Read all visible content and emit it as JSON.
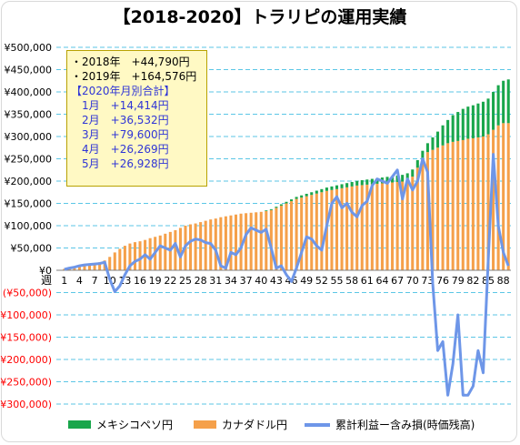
{
  "title": "【2018-2020】トラリピの運用実績",
  "colors": {
    "green": "#19a64b",
    "orange": "#f5a04a",
    "line": "#6e96e8",
    "neg": "#ff0000",
    "grid": "#5bc6e6"
  },
  "chart_data": {
    "type": "bar",
    "subtype": "stacked bar with line overlay",
    "title": "【2018-2020】トラリピの運用実績",
    "x_axis_label": "週",
    "x_tick_labels": [
      "1",
      "4",
      "7",
      "10",
      "13",
      "16",
      "19",
      "22",
      "25",
      "28",
      "31",
      "34",
      "37",
      "40",
      "43",
      "46",
      "49",
      "52",
      "55",
      "58",
      "61",
      "64",
      "67",
      "70",
      "73",
      "76",
      "79",
      "82",
      "85",
      "88"
    ],
    "y_tick_labels": [
      "¥500,000",
      "¥450,000",
      "¥400,000",
      "¥350,000",
      "¥300,000",
      "¥250,000",
      "¥200,000",
      "¥150,000",
      "¥100,000",
      "¥50,000",
      "¥0",
      "(¥50,000)",
      "(¥100,000)",
      "(¥150,000)",
      "(¥200,000)",
      "(¥250,000)",
      "(¥300,000)"
    ],
    "ylim": [
      -300000,
      500000
    ],
    "grid": true,
    "legend_position": "bottom",
    "series_names": [
      "メキシコペソ円",
      "カナダドル円",
      "累計利益ー含み損(時価残高)"
    ],
    "x": [
      1,
      2,
      3,
      4,
      5,
      6,
      7,
      8,
      9,
      10,
      11,
      12,
      13,
      14,
      15,
      16,
      17,
      18,
      19,
      20,
      21,
      22,
      23,
      24,
      25,
      26,
      27,
      28,
      29,
      30,
      31,
      32,
      33,
      34,
      35,
      36,
      37,
      38,
      39,
      40,
      41,
      42,
      43,
      44,
      45,
      46,
      47,
      48,
      49,
      50,
      51,
      52,
      53,
      54,
      55,
      56,
      57,
      58,
      59,
      60,
      61,
      62,
      63,
      64,
      65,
      66,
      67,
      68,
      69,
      70,
      71,
      72,
      73,
      74,
      75,
      76,
      77,
      78,
      79,
      80,
      81,
      82,
      83,
      84,
      85,
      86,
      87,
      88,
      89
    ],
    "series": [
      {
        "name": "カナダドル円",
        "values": [
          3000,
          5000,
          7000,
          10000,
          12000,
          14000,
          16000,
          18000,
          22000,
          30000,
          40000,
          48000,
          55000,
          60000,
          63000,
          65000,
          68000,
          72000,
          75000,
          78000,
          82000,
          86000,
          90000,
          95000,
          100000,
          103000,
          105000,
          108000,
          111000,
          114000,
          116000,
          119000,
          121000,
          123000,
          125000,
          127000,
          128000,
          129000,
          130000,
          131000,
          133000,
          135000,
          140000,
          145000,
          150000,
          155000,
          160000,
          163000,
          166000,
          169000,
          172000,
          175000,
          178000,
          180000,
          182000,
          184000,
          186000,
          188000,
          190000,
          191000,
          192000,
          193000,
          194000,
          195000,
          196000,
          197000,
          198000,
          199000,
          202000,
          210000,
          230000,
          250000,
          265000,
          270000,
          275000,
          280000,
          285000,
          288000,
          290000,
          292000,
          295000,
          296000,
          298000,
          300000,
          305000,
          315000,
          325000,
          330000,
          330000
        ]
      },
      {
        "name": "メキシコペソ円",
        "values": [
          0,
          0,
          0,
          0,
          0,
          0,
          0,
          0,
          0,
          0,
          0,
          0,
          0,
          0,
          0,
          0,
          0,
          0,
          0,
          0,
          0,
          0,
          0,
          0,
          0,
          0,
          0,
          0,
          0,
          0,
          0,
          0,
          0,
          0,
          0,
          0,
          0,
          0,
          0,
          0,
          1500,
          2000,
          2500,
          3000,
          3500,
          4000,
          4500,
          5000,
          5500,
          6000,
          6500,
          7000,
          7500,
          8000,
          8500,
          9000,
          9500,
          10000,
          10500,
          11000,
          11500,
          12000,
          12500,
          13000,
          13500,
          14000,
          14500,
          15000,
          15500,
          16000,
          17000,
          18000,
          20000,
          28000,
          36000,
          45000,
          52000,
          60000,
          65000,
          70000,
          72000,
          74000,
          76000,
          78000,
          80000,
          85000,
          90000,
          95000,
          98000
        ]
      },
      {
        "name": "累計利益ー含み損(時価残高)",
        "values": [
          2000,
          5000,
          7000,
          10000,
          12000,
          13000,
          14000,
          15000,
          18000,
          -20000,
          -48000,
          -35000,
          -10000,
          10000,
          20000,
          25000,
          35000,
          25000,
          40000,
          55000,
          50000,
          45000,
          60000,
          30000,
          55000,
          65000,
          70000,
          68000,
          62000,
          60000,
          45000,
          10000,
          5000,
          40000,
          35000,
          50000,
          80000,
          95000,
          90000,
          85000,
          92000,
          50000,
          5000,
          10000,
          -10000,
          -25000,
          5000,
          40000,
          75000,
          70000,
          55000,
          45000,
          100000,
          150000,
          165000,
          140000,
          150000,
          130000,
          120000,
          145000,
          155000,
          190000,
          205000,
          200000,
          195000,
          210000,
          225000,
          160000,
          205000,
          180000,
          200000,
          250000,
          220000,
          -30000,
          -180000,
          -160000,
          -280000,
          -210000,
          -100000,
          -280000,
          -280000,
          -260000,
          -180000,
          -230000,
          20000,
          260000,
          100000,
          40000,
          10000
        ]
      }
    ]
  },
  "infobox": {
    "lines": [
      {
        "text": "・2018年　+44,790円",
        "color": "black"
      },
      {
        "text": "・2019年　+164,576円",
        "color": "black"
      },
      {
        "text": "【2020年月別合計】",
        "color": "blue"
      },
      {
        "text": "　1月　+14,414円",
        "color": "blue"
      },
      {
        "text": "　2月　+36,532円",
        "color": "blue"
      },
      {
        "text": "　3月　+79,600円",
        "color": "blue"
      },
      {
        "text": "　4月　+26,269円",
        "color": "blue"
      },
      {
        "text": "　5月　+26,928円",
        "color": "blue"
      }
    ]
  },
  "legend": {
    "items": [
      {
        "label": "メキシコペソ円",
        "kind": "bar",
        "color": "#19a64b"
      },
      {
        "label": "カナダドル円",
        "kind": "bar",
        "color": "#f5a04a"
      },
      {
        "label": "累計利益ー含み損(時価残高)",
        "kind": "line",
        "color": "#6e96e8"
      }
    ]
  }
}
